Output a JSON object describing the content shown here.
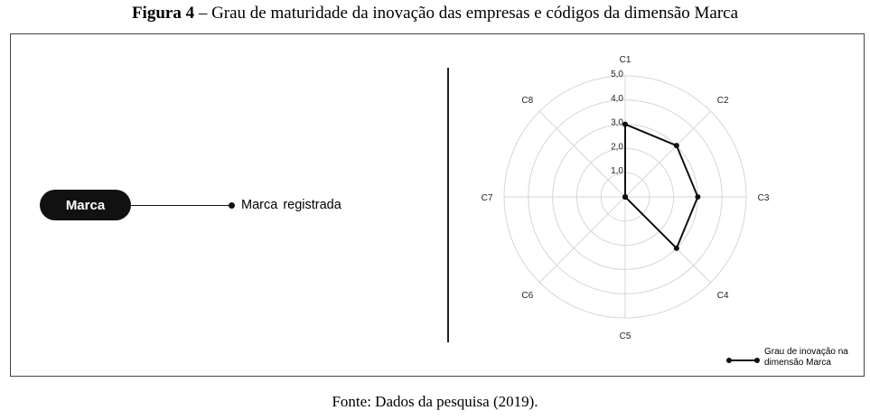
{
  "caption": {
    "label": "Figura 4",
    "text": " – Grau de maturidade da inovação das empresas e códigos da dimensão Marca"
  },
  "diagram": {
    "node_label": "Marca",
    "branch_label": "Marca registrada"
  },
  "legend": {
    "label": "Grau de inovação na dimensão Marca"
  },
  "source": "Fonte: Dados da pesquisa (2019).",
  "chart_data": {
    "type": "radar",
    "categories": [
      "C1",
      "C2",
      "C3",
      "C4",
      "C5",
      "C6",
      "C7",
      "C8"
    ],
    "rlim": [
      0,
      5
    ],
    "rticks": [
      "1,0",
      "2,0",
      "3,0",
      "4,0",
      "5,0"
    ],
    "series": [
      {
        "name": "Grau de inovação na dimensão Marca",
        "values": [
          3,
          3,
          3,
          3,
          0,
          0,
          0,
          0
        ]
      }
    ],
    "grid": true,
    "legend_position": "bottom-right"
  }
}
